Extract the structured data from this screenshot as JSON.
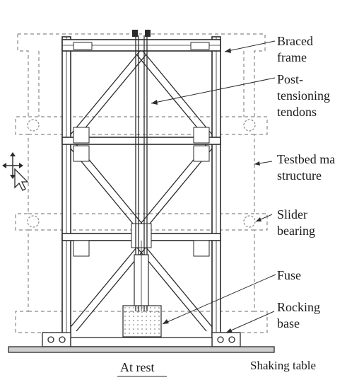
{
  "labels": {
    "braced_frame": [
      "Braced",
      "frame"
    ],
    "post_tensioning": [
      "Post-",
      "tensioning",
      "tendons"
    ],
    "testbed": [
      "Testbed ma",
      "structure"
    ],
    "slider": [
      "Slider",
      "bearing"
    ],
    "fuse": [
      "Fuse"
    ],
    "rocking": [
      "Rocking",
      "base"
    ],
    "shaking_table": "Shaking table",
    "caption": "At rest"
  },
  "colors": {
    "line": "#2b2b2b",
    "dashed": "#8a8a8a",
    "background": "#ffffff"
  },
  "cursor_icon": "move-cursor-icon"
}
